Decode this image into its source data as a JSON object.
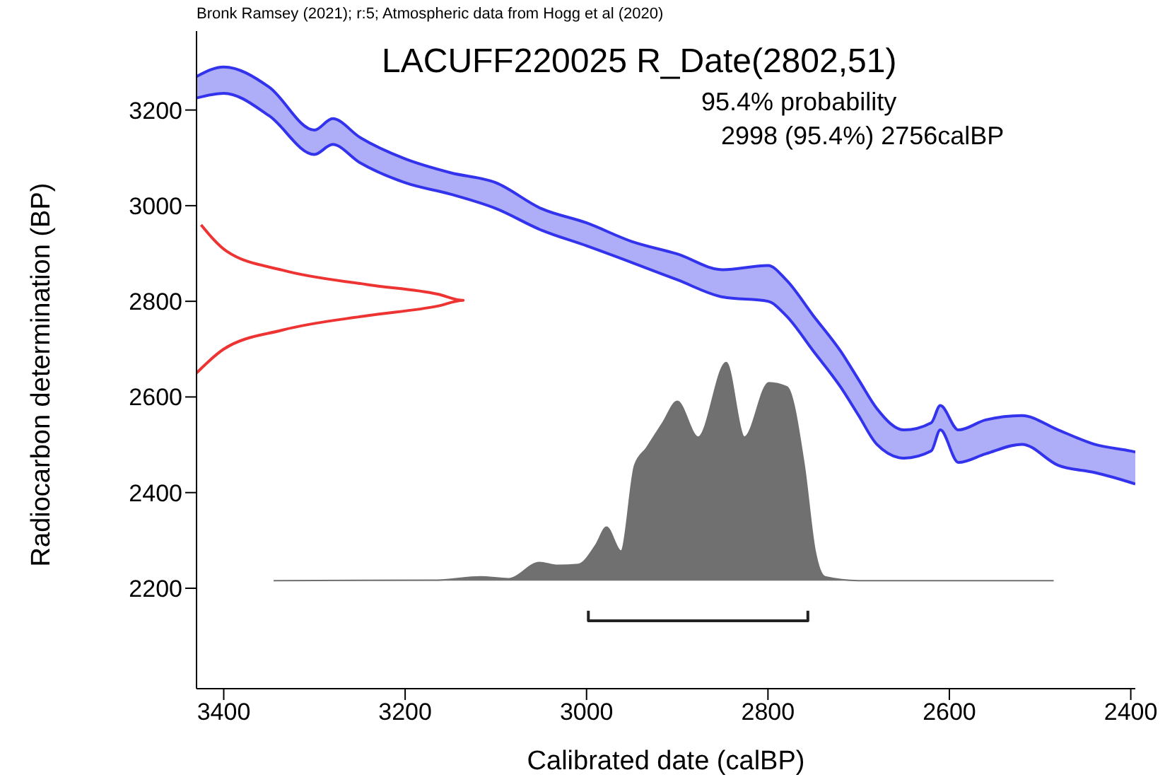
{
  "chart_data": {
    "type": "area",
    "grid": false,
    "legend": false,
    "title": "LACUFF220025 R_Date(2802,51)",
    "annotations": [
      "Bronk Ramsey (2021); r:5; Atmospheric data from Hogg et al (2020)",
      "95.4% probability",
      "2998 (95.4%) 2756calBP"
    ],
    "xlabel": "Calibrated date (calBP)",
    "ylabel": "Radiocarbon determination (BP)",
    "xlim": [
      3430,
      2395
    ],
    "xticks": [
      3400,
      3200,
      3000,
      2800,
      2600,
      2400
    ],
    "ylim": [
      1990,
      3365
    ],
    "yticks": [
      2200,
      2400,
      2600,
      2800,
      3000,
      3200
    ],
    "series": [
      {
        "type": "line",
        "color": "#3333ee",
        "x": [
          3430,
          3400,
          3350,
          3300,
          3280,
          3250,
          3200,
          3150,
          3100,
          3050,
          3000,
          2950,
          2900,
          2850,
          2800,
          2780,
          2750,
          2720,
          2700,
          2680,
          2650,
          2620,
          2610,
          2590,
          2560,
          2520,
          2480,
          2440,
          2400,
          2395
        ],
        "values": [
          3270,
          3290,
          3248,
          3158,
          3182,
          3143,
          3098,
          3069,
          3048,
          2994,
          2964,
          2925,
          2899,
          2866,
          2875,
          2845,
          2770,
          2696,
          2636,
          2576,
          2531,
          2546,
          2582,
          2531,
          2552,
          2561,
          2531,
          2501,
          2487,
          2485
        ],
        "lower": [
          3225,
          3235,
          3188,
          3107,
          3128,
          3090,
          3048,
          3024,
          2994,
          2949,
          2916,
          2881,
          2845,
          2809,
          2800,
          2770,
          2696,
          2621,
          2561,
          2501,
          2472,
          2487,
          2531,
          2463,
          2481,
          2501,
          2457,
          2442,
          2421,
          2418
        ],
        "upper": [
          3270,
          3290,
          3248,
          3158,
          3182,
          3143,
          3098,
          3069,
          3048,
          2994,
          2964,
          2925,
          2899,
          2866,
          2875,
          2845,
          2770,
          2696,
          2636,
          2576,
          2531,
          2546,
          2582,
          2531,
          2552,
          2561,
          2531,
          2501,
          2487,
          2485
        ]
      },
      {
        "type": "line",
        "color": "#3333ee",
        "x": [
          3430,
          3400,
          3350,
          3300,
          3280,
          3250,
          3200,
          3150,
          3100,
          3050,
          3000,
          2950,
          2900,
          2850,
          2800,
          2780,
          2750,
          2720,
          2700,
          2680,
          2650,
          2620,
          2610,
          2590,
          2560,
          2520,
          2480,
          2440,
          2400,
          2395
        ],
        "values": [
          3225,
          3235,
          3188,
          3107,
          3128,
          3090,
          3048,
          3024,
          2994,
          2949,
          2916,
          2881,
          2845,
          2809,
          2800,
          2770,
          2696,
          2621,
          2561,
          2501,
          2472,
          2487,
          2531,
          2463,
          2481,
          2501,
          2457,
          2442,
          2421,
          2418
        ]
      },
      {
        "type": "line",
        "color": "#ee3333",
        "x": [
          3430,
          3400,
          3335,
          3242,
          3164,
          3136,
          3164,
          3242,
          3335,
          3397,
          3425
        ],
        "values": [
          2650,
          2700,
          2740,
          2770,
          2790,
          2802,
          2815,
          2835,
          2865,
          2905,
          2960
        ]
      },
      {
        "color": "#707070",
        "x": [
          3345,
          3164,
          3117,
          3086,
          3052,
          3032,
          3009,
          2990,
          2978,
          2962,
          2947,
          2934,
          2916,
          2900,
          2877,
          2846,
          2826,
          2799,
          2779,
          2760,
          2748,
          2737,
          2700,
          2485
        ],
        "values": [
          2216,
          2217,
          2224,
          2220,
          2254,
          2248,
          2250,
          2290,
          2328,
          2278,
          2457,
          2493,
          2546,
          2591,
          2516,
          2672,
          2516,
          2630,
          2621,
          2457,
          2278,
          2224,
          2216,
          2216
        ]
      },
      {
        "type": "line",
        "color": "#222222",
        "x": [
          2998,
          2998,
          2756,
          2756
        ],
        "values": [
          2153,
          2132,
          2132,
          2153
        ]
      }
    ]
  }
}
